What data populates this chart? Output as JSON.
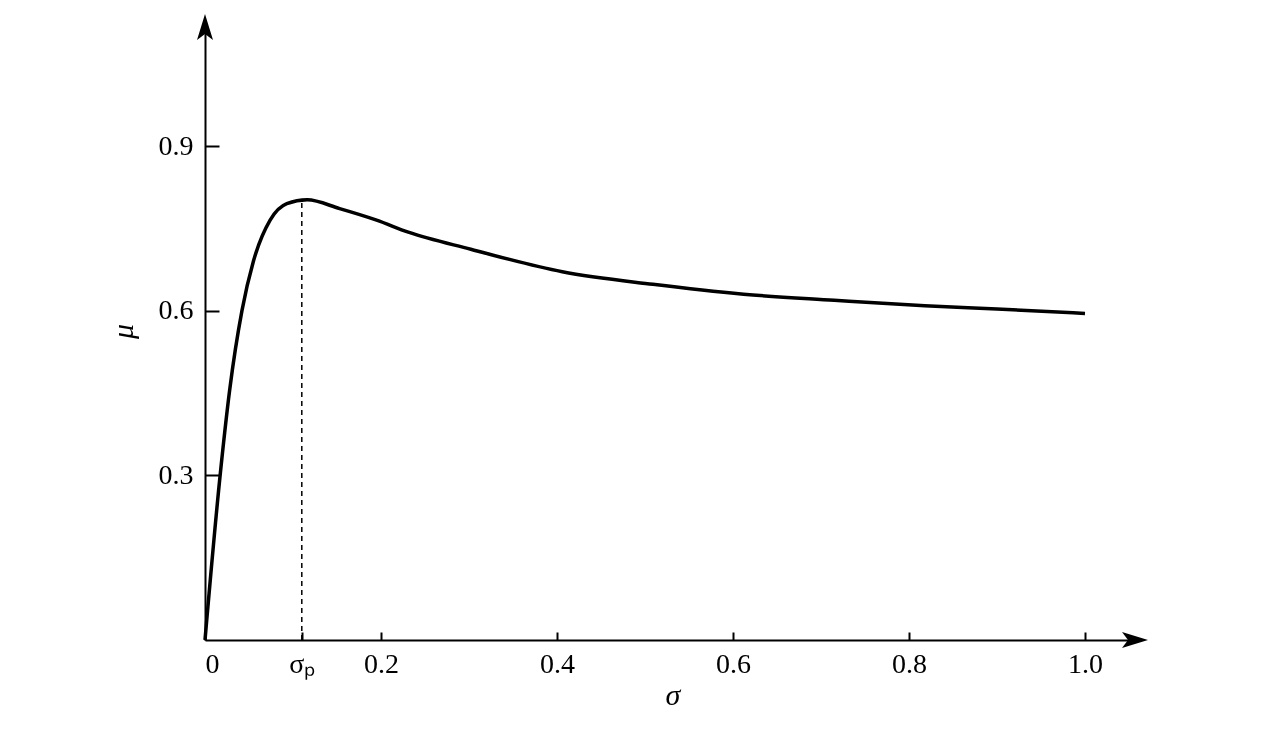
{
  "chart_data": {
    "type": "line",
    "xlabel": "σ",
    "ylabel": "μ",
    "x": [
      0,
      0.017,
      0.028,
      0.042,
      0.055,
      0.074,
      0.093,
      0.116,
      0.153,
      0.195,
      0.231,
      0.302,
      0.406,
      0.509,
      0.612,
      0.715,
      0.818,
      0.9,
      1.0
    ],
    "series": [
      {
        "color": "#000000",
        "values": [
          0,
          0.297,
          0.455,
          0.6,
          0.69,
          0.765,
          0.795,
          0.802,
          0.786,
          0.765,
          0.743,
          0.712,
          0.671,
          0.648,
          0.63,
          0.619,
          0.609,
          0.603,
          0.595
        ]
      }
    ],
    "xlim": [
      0,
      1.0625
    ],
    "ylim": [
      0,
      1.126
    ],
    "xticks": [
      0,
      {
        "value": 0.11,
        "label": "σₚ"
      },
      0.2,
      0.4,
      0.6,
      0.8,
      {
        "value": 1,
        "label": "1.0"
      }
    ],
    "yticks": [
      0.3,
      0.6,
      0.9
    ],
    "ref_lines": [
      {
        "axis": "x",
        "value": 0.11,
        "line_style": "dashed",
        "color": "#000000"
      }
    ],
    "grid": false,
    "marker": "none",
    "line_style": "solid"
  }
}
